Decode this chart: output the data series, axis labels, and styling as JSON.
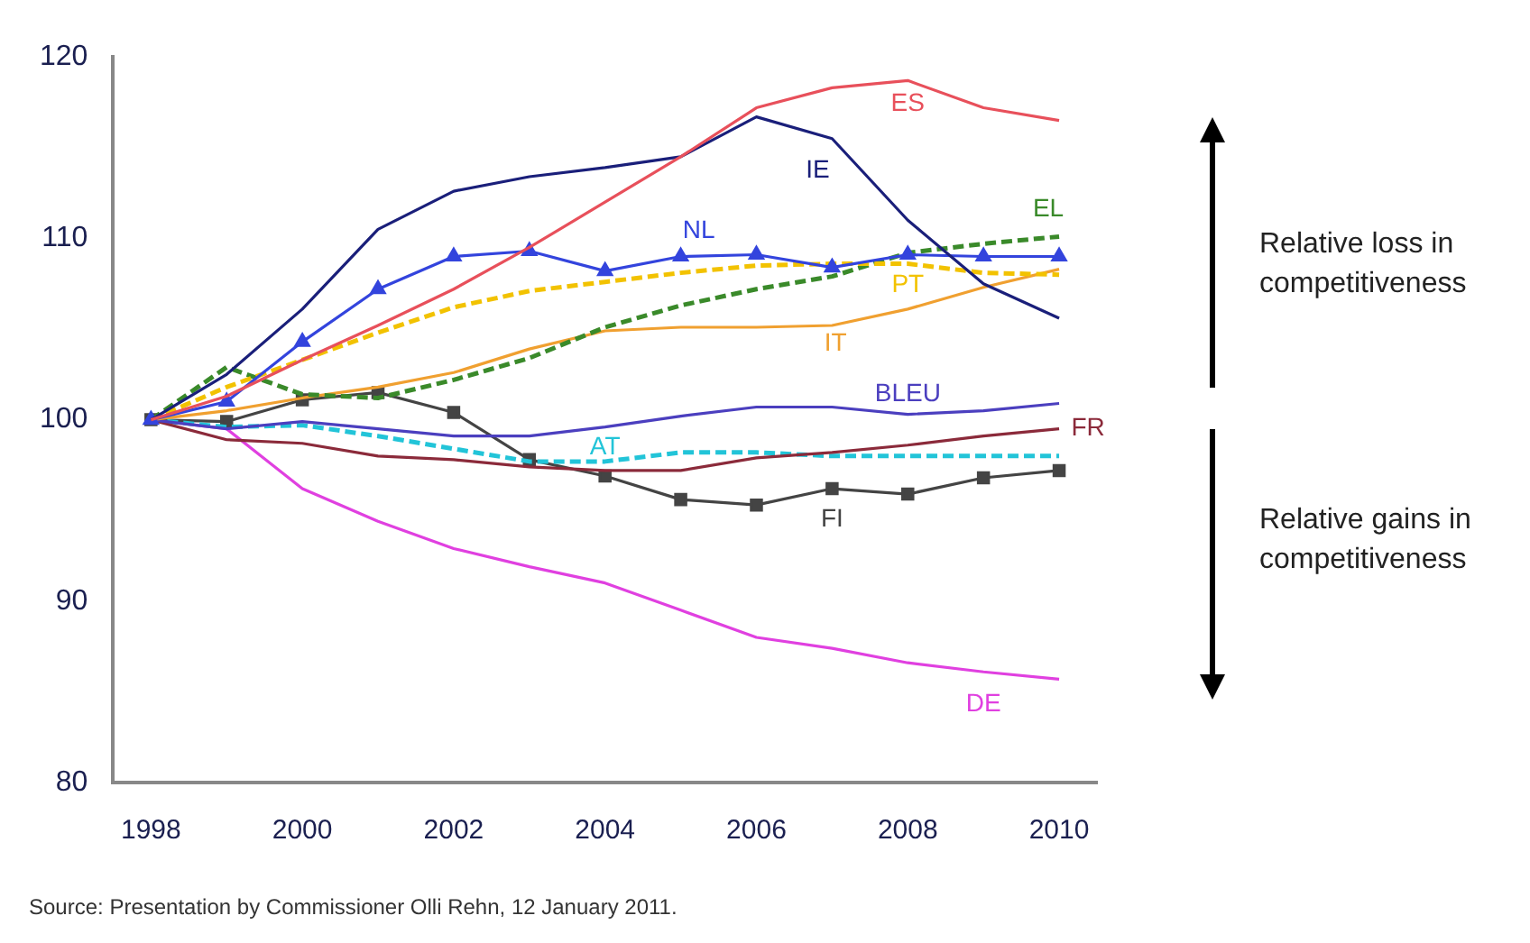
{
  "chart_data": {
    "type": "line",
    "x": [
      1998,
      1999,
      2000,
      2001,
      2002,
      2003,
      2004,
      2005,
      2006,
      2007,
      2008,
      2009,
      2010
    ],
    "xlim": [
      1997.5,
      2010.5
    ],
    "xticks": [
      1998,
      2000,
      2002,
      2004,
      2006,
      2008,
      2010
    ],
    "ylim": [
      80,
      120
    ],
    "yticks": [
      80,
      90,
      100,
      110,
      120
    ],
    "grid": false,
    "legend": false,
    "marker": "none",
    "line_style": "solid",
    "series": [
      {
        "name": "ES",
        "color": "#e8505b",
        "values": [
          100,
          101.3,
          103.3,
          105.2,
          107.2,
          109.5,
          112,
          114.5,
          117.2,
          118.3,
          118.7,
          117.2,
          116.5
        ]
      },
      {
        "name": "IE",
        "color": "#1a1f7a",
        "values": [
          100,
          102.5,
          106.1,
          110.5,
          112.6,
          113.4,
          113.9,
          114.5,
          116.7,
          115.5,
          111,
          107.5,
          105.6
        ]
      },
      {
        "name": "NL",
        "color": "#3344dd",
        "marker": "triangle",
        "values": [
          100,
          101,
          104.3,
          107.2,
          109,
          109.3,
          108.2,
          109,
          109.1,
          108.4,
          109.1,
          109,
          109
        ]
      },
      {
        "name": "PT",
        "color": "#f2c200",
        "line_style": "dashed",
        "values": [
          100,
          101.8,
          103.3,
          104.8,
          106.2,
          107.1,
          107.6,
          108.1,
          108.5,
          108.6,
          108.6,
          108.1,
          108
        ]
      },
      {
        "name": "EL",
        "color": "#3a8a2a",
        "line_style": "dashed",
        "values": [
          100,
          102.9,
          101.4,
          101.2,
          102.2,
          103.4,
          105.1,
          106.3,
          107.2,
          107.9,
          109.2,
          109.7,
          110.1
        ]
      },
      {
        "name": "IT",
        "color": "#f0a030",
        "values": [
          100,
          100.5,
          101.2,
          101.8,
          102.6,
          103.9,
          104.9,
          105.1,
          105.1,
          105.2,
          106.1,
          107.3,
          108.3
        ]
      },
      {
        "name": "BLEU",
        "color": "#4b3fbf",
        "values": [
          100,
          99.5,
          99.9,
          99.5,
          99.1,
          99.1,
          99.6,
          100.2,
          100.7,
          100.7,
          100.3,
          100.5,
          100.9
        ]
      },
      {
        "name": "FR",
        "color": "#8b2a3a",
        "values": [
          100,
          98.9,
          98.7,
          98,
          97.8,
          97.4,
          97.2,
          97.2,
          97.9,
          98.2,
          98.6,
          99.1,
          99.5
        ]
      },
      {
        "name": "AT",
        "color": "#22c4d8",
        "line_style": "dashed",
        "values": [
          100,
          99.6,
          99.7,
          99.1,
          98.4,
          97.7,
          97.7,
          98.2,
          98.2,
          98,
          98,
          98,
          98
        ]
      },
      {
        "name": "FI",
        "color": "#444444",
        "marker": "square",
        "values": [
          100,
          99.9,
          101.1,
          101.5,
          100.4,
          97.8,
          96.9,
          95.6,
          95.3,
          96.2,
          95.9,
          96.8,
          97.2
        ]
      },
      {
        "name": "DE",
        "color": "#e040e0",
        "values": [
          100,
          99.5,
          96.2,
          94.4,
          92.9,
          91.9,
          91,
          89.5,
          88,
          87.4,
          86.6,
          86.1,
          85.7
        ]
      }
    ],
    "annotations": [
      "Relative loss in competitiveness",
      "Relative gains in competitiveness",
      "Source: Presentation by Commissioner Olli Rehn, 12 January 2011."
    ]
  }
}
